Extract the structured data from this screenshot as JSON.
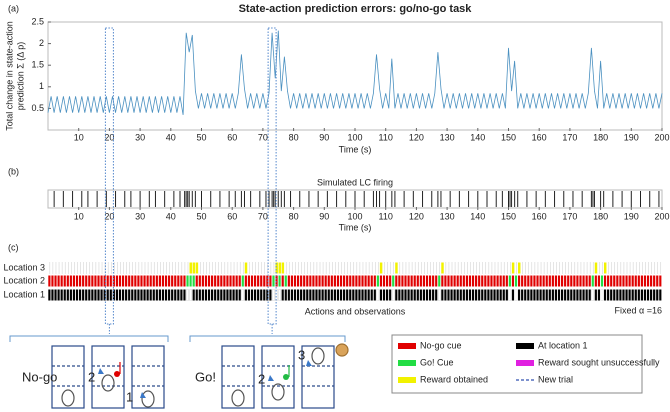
{
  "chart_data": {
    "type": "line",
    "title": "State-action prediction errors: go/no-go task",
    "panel_a_label": "(a)",
    "ylabel": [
      "Total change in state-action",
      "prediction Σ (Δ p)"
    ],
    "xlabel": "Time (s)",
    "color": "#4a90c0",
    "xlim": [
      0,
      200
    ],
    "ylim": [
      0,
      2.5
    ],
    "xticks": [
      10,
      20,
      30,
      40,
      50,
      60,
      70,
      80,
      90,
      100,
      110,
      120,
      130,
      140,
      150,
      160,
      170,
      180,
      190,
      200
    ],
    "yticks": [
      0.5,
      1,
      1.5,
      2,
      2.5
    ],
    "x": [
      0,
      1,
      2,
      3,
      4,
      5,
      6,
      7,
      8,
      9,
      10,
      11,
      12,
      13,
      14,
      15,
      16,
      17,
      18,
      19,
      20,
      21,
      22,
      23,
      24,
      25,
      26,
      27,
      28,
      29,
      30,
      31,
      32,
      33,
      34,
      35,
      36,
      37,
      38,
      39,
      40,
      41,
      42,
      43,
      44,
      45,
      46,
      47,
      48,
      49,
      50,
      51,
      52,
      53,
      54,
      55,
      56,
      57,
      58,
      59,
      60,
      61,
      62,
      63,
      64,
      65,
      66,
      67,
      68,
      69,
      70,
      71,
      72,
      73,
      74,
      75,
      76,
      77,
      78,
      79,
      80,
      81,
      82,
      83,
      84,
      85,
      86,
      87,
      88,
      89,
      90,
      91,
      92,
      93,
      94,
      95,
      96,
      97,
      98,
      99,
      100,
      101,
      102,
      103,
      104,
      105,
      106,
      107,
      108,
      109,
      110,
      111,
      112,
      113,
      114,
      115,
      116,
      117,
      118,
      119,
      120,
      121,
      122,
      123,
      124,
      125,
      126,
      127,
      128,
      129,
      130,
      131,
      132,
      133,
      134,
      135,
      136,
      137,
      138,
      139,
      140,
      141,
      142,
      143,
      144,
      145,
      146,
      147,
      148,
      149,
      150,
      151,
      152,
      153,
      154,
      155,
      156,
      157,
      158,
      159,
      160,
      161,
      162,
      163,
      164,
      165,
      166,
      167,
      168,
      169,
      170,
      171,
      172,
      173,
      174,
      175,
      176,
      177,
      178,
      179,
      180,
      181,
      182,
      183,
      184,
      185,
      186,
      187,
      188,
      189,
      190,
      191,
      192,
      193,
      194,
      195,
      196,
      197,
      198,
      199,
      200
    ],
    "values": [
      0.4,
      0.78,
      0.4,
      0.78,
      0.4,
      0.78,
      0.4,
      0.78,
      0.4,
      0.78,
      0.4,
      0.78,
      0.4,
      0.78,
      0.4,
      0.78,
      0.4,
      0.78,
      0.4,
      0.78,
      0.4,
      0.78,
      0.4,
      0.78,
      0.4,
      0.78,
      0.4,
      0.78,
      0.4,
      0.78,
      0.4,
      0.78,
      0.4,
      0.78,
      0.4,
      0.78,
      0.4,
      0.78,
      0.4,
      0.78,
      0.4,
      0.78,
      0.4,
      0.78,
      0.35,
      2.25,
      1.8,
      2.2,
      0.9,
      0.5,
      0.85,
      0.5,
      0.85,
      0.5,
      0.85,
      0.5,
      0.85,
      0.5,
      0.85,
      0.5,
      0.85,
      0.5,
      0.85,
      1.75,
      0.95,
      0.5,
      0.85,
      0.5,
      0.85,
      0.5,
      0.85,
      0.5,
      0.85,
      2.25,
      1.2,
      2.3,
      0.9,
      1.7,
      0.9,
      0.5,
      0.85,
      0.5,
      0.85,
      0.5,
      0.85,
      0.5,
      0.85,
      0.5,
      0.85,
      0.5,
      0.85,
      0.5,
      0.85,
      0.5,
      0.85,
      0.5,
      0.85,
      0.5,
      0.85,
      0.5,
      0.85,
      0.5,
      0.85,
      0.5,
      0.85,
      0.5,
      0.85,
      1.75,
      0.95,
      0.5,
      0.85,
      0.5,
      1.65,
      0.5,
      0.85,
      0.5,
      0.85,
      0.5,
      0.85,
      0.5,
      0.85,
      0.5,
      0.85,
      0.5,
      0.85,
      0.5,
      0.85,
      1.8,
      0.95,
      0.5,
      0.85,
      0.5,
      0.85,
      0.5,
      0.85,
      0.5,
      0.85,
      0.5,
      0.85,
      0.5,
      0.85,
      0.5,
      0.85,
      0.5,
      0.85,
      0.5,
      0.85,
      0.5,
      0.85,
      0.5,
      1.9,
      0.9,
      1.6,
      0.5,
      0.85,
      0.5,
      0.85,
      0.5,
      0.85,
      0.5,
      0.85,
      0.5,
      0.85,
      0.5,
      0.85,
      0.5,
      0.85,
      0.5,
      0.85,
      0.5,
      0.85,
      0.5,
      0.85,
      0.5,
      0.85,
      0.5,
      0.85,
      1.9,
      0.9,
      0.5,
      1.6,
      0.5,
      0.85,
      0.5,
      0.85,
      0.5,
      0.85,
      0.5,
      0.85,
      0.5,
      0.85,
      0.5,
      0.85,
      0.5,
      0.85,
      0.5,
      0.85,
      0.5,
      0.85,
      0.5,
      0.85
    ],
    "highlighted_times": [
      20,
      73
    ],
    "panel_b": {
      "label": "(b)",
      "title": "Simulated LC firing",
      "xlabel": "Time (s)",
      "spike_times": [
        2,
        5,
        8,
        11,
        13,
        16,
        19,
        22,
        25,
        27,
        30,
        33,
        35,
        38,
        41,
        43,
        44.5,
        45,
        45.5,
        46,
        47,
        48,
        50,
        53,
        56,
        59,
        61,
        63,
        64,
        66,
        69,
        71,
        72,
        73,
        73.5,
        74,
        75,
        76,
        77,
        79,
        82,
        85,
        88,
        91,
        94,
        97,
        100,
        103,
        106,
        107,
        108,
        110,
        112,
        113,
        116,
        119,
        122,
        125,
        127,
        128,
        131,
        134,
        137,
        140,
        143,
        146,
        148,
        150,
        150.5,
        151,
        152,
        153,
        156,
        159,
        162,
        165,
        168,
        171,
        174,
        177,
        177.5,
        178,
        180,
        181,
        184,
        187,
        190,
        193,
        196,
        199
      ]
    },
    "panel_c": {
      "label": "(c)",
      "xlabel": "Actions and observations",
      "note": "Fixed α =16",
      "rows": [
        "Location 3",
        "Location 2",
        "Location 1"
      ],
      "go_cue_times": [
        45,
        46,
        47,
        63,
        73,
        75,
        77,
        107,
        112,
        127,
        150,
        152,
        177,
        180
      ],
      "reward_times": [
        46,
        47,
        48,
        64,
        74,
        75,
        76,
        108,
        113,
        128,
        151,
        153,
        178,
        181
      ],
      "away_from_location1_times": [
        45,
        46,
        63,
        73,
        74,
        75,
        107,
        112,
        127,
        150,
        152,
        177,
        180
      ]
    },
    "legend": [
      {
        "name": "No-go cue",
        "color": "#e00000"
      },
      {
        "name": "Go! Cue",
        "color": "#22dd44"
      },
      {
        "name": "Reward obtained",
        "color": "#f2f200"
      },
      {
        "name": "At location 1",
        "color": "#000000"
      },
      {
        "name": "Reward sought unsuccessfully",
        "color": "#e020e0"
      },
      {
        "name": "New trial",
        "color": "#3050b0"
      }
    ],
    "diagrams": [
      {
        "label": "No-go",
        "steps": [
          "2",
          "1"
        ]
      },
      {
        "label": "Go!",
        "steps": [
          "2",
          "3"
        ]
      }
    ]
  }
}
